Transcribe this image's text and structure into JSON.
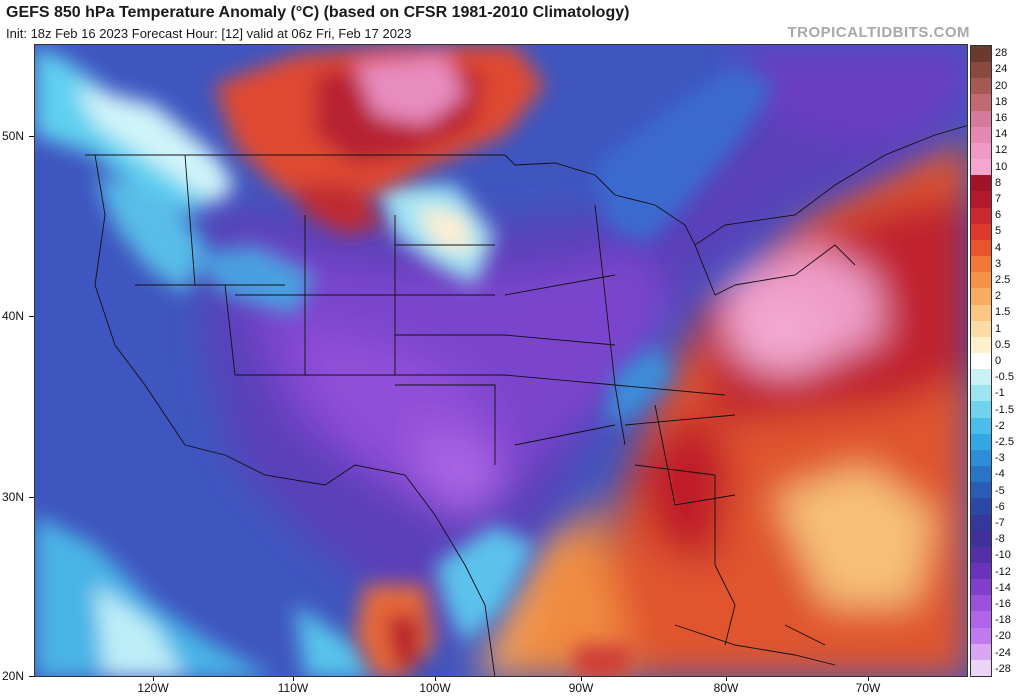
{
  "header": {
    "title": "GEFS 850 hPa Temperature Anomaly (°C) (based on CFSR 1981-2010 Climatology)",
    "subtitle": "Init: 18z Feb 16 2023   Forecast Hour: [12]   valid at 06z Fri, Feb 17 2023",
    "brand": "TROPICALTIDBITS.COM"
  },
  "axes": {
    "lat_labels": [
      "50N",
      "40N",
      "30N",
      "20N"
    ],
    "lon_labels": [
      "120W",
      "110W",
      "100W",
      "90W",
      "80W",
      "70W"
    ]
  },
  "colorbar": {
    "labels": [
      "28",
      "24",
      "20",
      "18",
      "16",
      "14",
      "12",
      "10",
      "8",
      "7",
      "6",
      "5",
      "4",
      "3",
      "2.5",
      "2",
      "1.5",
      "1",
      "0.5",
      "0",
      "-0.5",
      "-1",
      "-1.5",
      "-2",
      "-2.5",
      "-3",
      "-4",
      "-5",
      "-6",
      "-7",
      "-8",
      "-10",
      "-12",
      "-14",
      "-16",
      "-18",
      "-20",
      "-24",
      "-28"
    ],
    "colors": [
      "#6b3a2e",
      "#8a4a3e",
      "#a45a52",
      "#c06a72",
      "#d47a9a",
      "#e48ab2",
      "#ef9ac4",
      "#f5a6cf",
      "#a2132a",
      "#b41a2e",
      "#c8282e",
      "#dc3a2c",
      "#e8542c",
      "#f07838",
      "#f59248",
      "#f8ac62",
      "#fac684",
      "#fcdca6",
      "#fef0cc",
      "#ffffff",
      "#c8f2f6",
      "#9ce4f0",
      "#70d2ec",
      "#4cbde8",
      "#34a6e2",
      "#2c8ed6",
      "#2a74c8",
      "#2a5cb6",
      "#2c48a6",
      "#34389a",
      "#40309a",
      "#5430a8",
      "#6a34ba",
      "#8040cc",
      "#9a52dc",
      "#b064e8",
      "#c07aee",
      "#d8a6f2",
      "#ecd4f8"
    ]
  },
  "map": {
    "palette": {
      "ocean_cold": "#3a5fc8",
      "deep_cold": "#5b3fb8",
      "violet": "#8a4ad6",
      "cyan": "#54c8ee",
      "warm_red": "#d23a2e",
      "deep_red": "#a8162e",
      "pink": "#e888bc",
      "orange": "#ee7a36",
      "light": "#fbd6a0",
      "neutral": "#fff3d8"
    }
  }
}
